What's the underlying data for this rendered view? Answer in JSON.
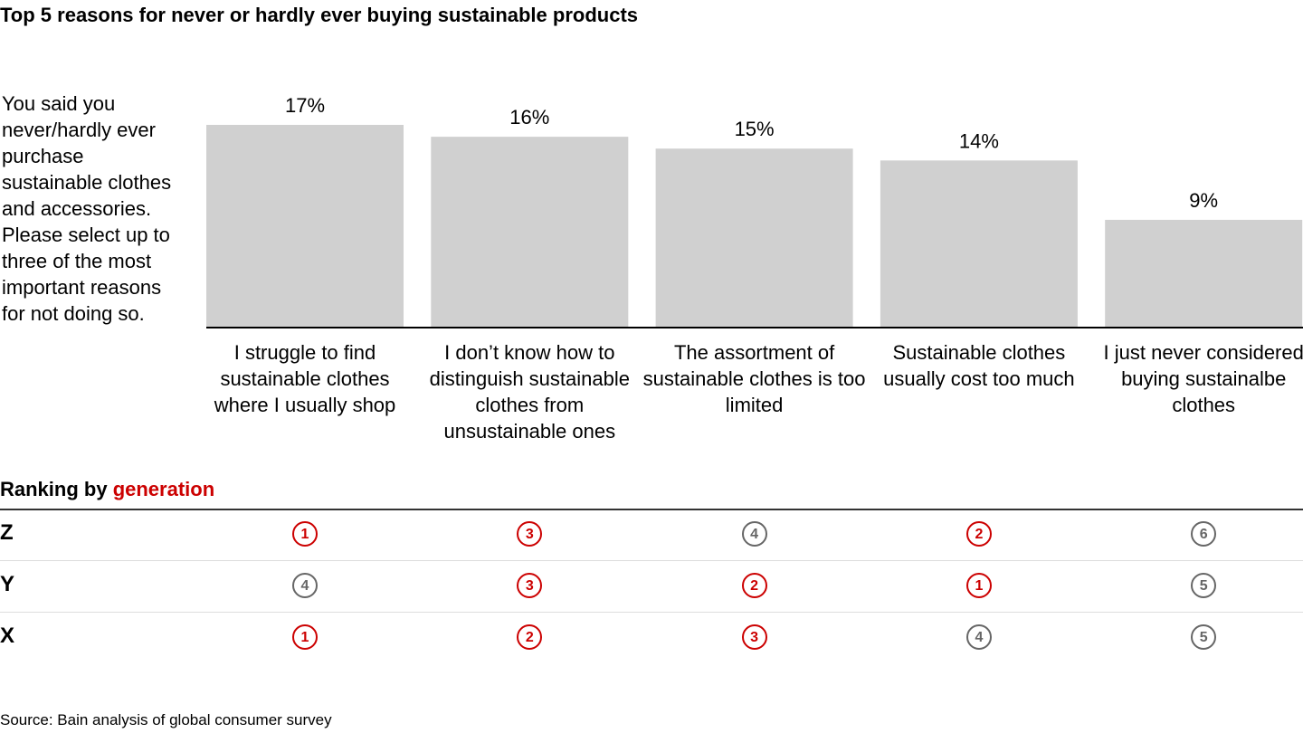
{
  "title": "Top 5 reasons for never or hardly ever buying sustainable products",
  "question": "You said you never/hardly ever purchase sustainable clothes and accessories. Please select up to three of the most important reasons for not doing so.",
  "chart_data": {
    "type": "bar",
    "categories": [
      "I struggle to find sustainable clothes where I usually shop",
      "I don’t know how to distinguish sustainable clothes from unsustainable ones",
      "The assortment of sustainable clothes is too limited",
      "Sustainable clothes usually cost too much",
      "I just never considered buying sustainalbe clothes"
    ],
    "values": [
      17,
      16,
      15,
      14,
      9
    ],
    "labels": [
      "17%",
      "16%",
      "15%",
      "14%",
      "9%"
    ],
    "ylim": [
      0,
      17
    ],
    "bar_color": "#d0d0d0"
  },
  "ranking": {
    "title_prefix": "Ranking by ",
    "title_highlight": "generation",
    "rows": [
      {
        "gen": "Z",
        "ranks": [
          "1",
          "3",
          "4",
          "2",
          "6"
        ]
      },
      {
        "gen": "Y",
        "ranks": [
          "4",
          "3",
          "2",
          "1",
          "5"
        ]
      },
      {
        "gen": "X",
        "ranks": [
          "1",
          "2",
          "3",
          "4",
          "5"
        ]
      }
    ],
    "top_color": "#cc0000",
    "other_color": "#666666"
  },
  "source": "Source: Bain analysis of global consumer survey"
}
